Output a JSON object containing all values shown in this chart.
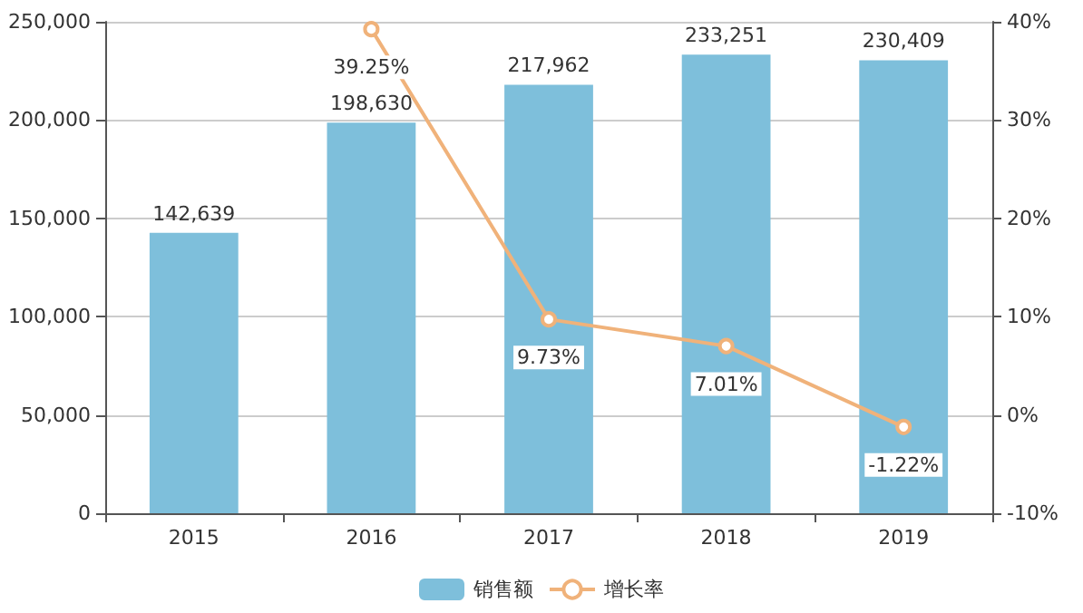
{
  "chart_data": {
    "type": "bar",
    "categories": [
      "2015",
      "2016",
      "2017",
      "2018",
      "2019"
    ],
    "series": [
      {
        "name": "销售额",
        "color": "#7ebfdb",
        "values": [
          142639,
          198630,
          217962,
          233251,
          230409
        ],
        "value_labels": [
          "142,639",
          "198,630",
          "217,962",
          "233,251",
          "230,409"
        ]
      },
      {
        "name": "增长率",
        "type": "line",
        "axis": "y2",
        "color": "#f0b27a",
        "marker": "circle",
        "values": [
          null,
          39.25,
          9.73,
          7.01,
          -1.22
        ],
        "value_labels": [
          null,
          "39.25%",
          "9.73%",
          "7.01%",
          "-1.22%"
        ]
      }
    ],
    "ylim": [
      0,
      250000
    ],
    "yticks": [
      {
        "value": 0,
        "label": "0"
      },
      {
        "value": 50000,
        "label": "50,000"
      },
      {
        "value": 100000,
        "label": "100,000"
      },
      {
        "value": 150000,
        "label": "150,000"
      },
      {
        "value": 200000,
        "label": "200,000"
      },
      {
        "value": 250000,
        "label": "250,000"
      }
    ],
    "y2lim": [
      -10,
      40
    ],
    "y2ticks": [
      {
        "value": -10,
        "label": "-10%"
      },
      {
        "value": 0,
        "label": "0%"
      },
      {
        "value": 10,
        "label": "10%"
      },
      {
        "value": 20,
        "label": "20%"
      },
      {
        "value": 30,
        "label": "30%"
      },
      {
        "value": 40,
        "label": "40%"
      }
    ],
    "grid": "y",
    "legend": "bottom"
  }
}
